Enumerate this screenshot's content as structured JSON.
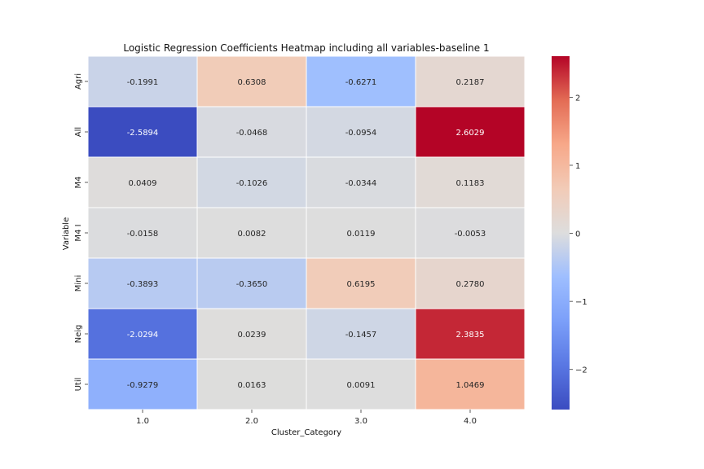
{
  "chart_data": {
    "type": "heatmap",
    "title": "Logistic Regression Coefficients Heatmap including all variables-baseline 1",
    "xlabel": "Cluster_Category",
    "ylabel": "Variable",
    "x_categories": [
      "1.0",
      "2.0",
      "3.0",
      "4.0"
    ],
    "y_categories": [
      "Agri",
      "All",
      "M4",
      "M4 I",
      "Mini",
      "Neig",
      "Util"
    ],
    "values": [
      [
        -0.1991,
        0.6308,
        -0.6271,
        0.2187
      ],
      [
        -2.5894,
        -0.0468,
        -0.0954,
        2.6029
      ],
      [
        0.0409,
        -0.1026,
        -0.0344,
        0.1183
      ],
      [
        -0.0158,
        0.0082,
        0.0119,
        -0.0053
      ],
      [
        -0.3893,
        -0.365,
        0.6195,
        0.278
      ],
      [
        -2.0294,
        0.0239,
        -0.1457,
        2.3835
      ],
      [
        -0.9279,
        0.0163,
        0.0091,
        1.0469
      ]
    ],
    "value_labels": [
      [
        "-0.1991",
        "0.6308",
        "-0.6271",
        "0.2187"
      ],
      [
        "-2.5894",
        "-0.0468",
        "-0.0954",
        "2.6029"
      ],
      [
        "0.0409",
        "-0.1026",
        "-0.0344",
        "0.1183"
      ],
      [
        "-0.0158",
        "0.0082",
        "0.0119",
        "-0.0053"
      ],
      [
        "-0.3893",
        "-0.3650",
        "0.6195",
        "0.2780"
      ],
      [
        "-2.0294",
        "0.0239",
        "-0.1457",
        "2.3835"
      ],
      [
        "-0.9279",
        "0.0163",
        "0.0091",
        "1.0469"
      ]
    ],
    "colormap": "coolwarm",
    "color_range": [
      -2.5894,
      2.6029
    ],
    "colorbar": {
      "ticks": [
        -2,
        -1,
        0,
        1,
        2
      ],
      "tick_labels": [
        "−2",
        "−1",
        "0",
        "1",
        "2"
      ],
      "placement": "right"
    },
    "grid": false
  }
}
